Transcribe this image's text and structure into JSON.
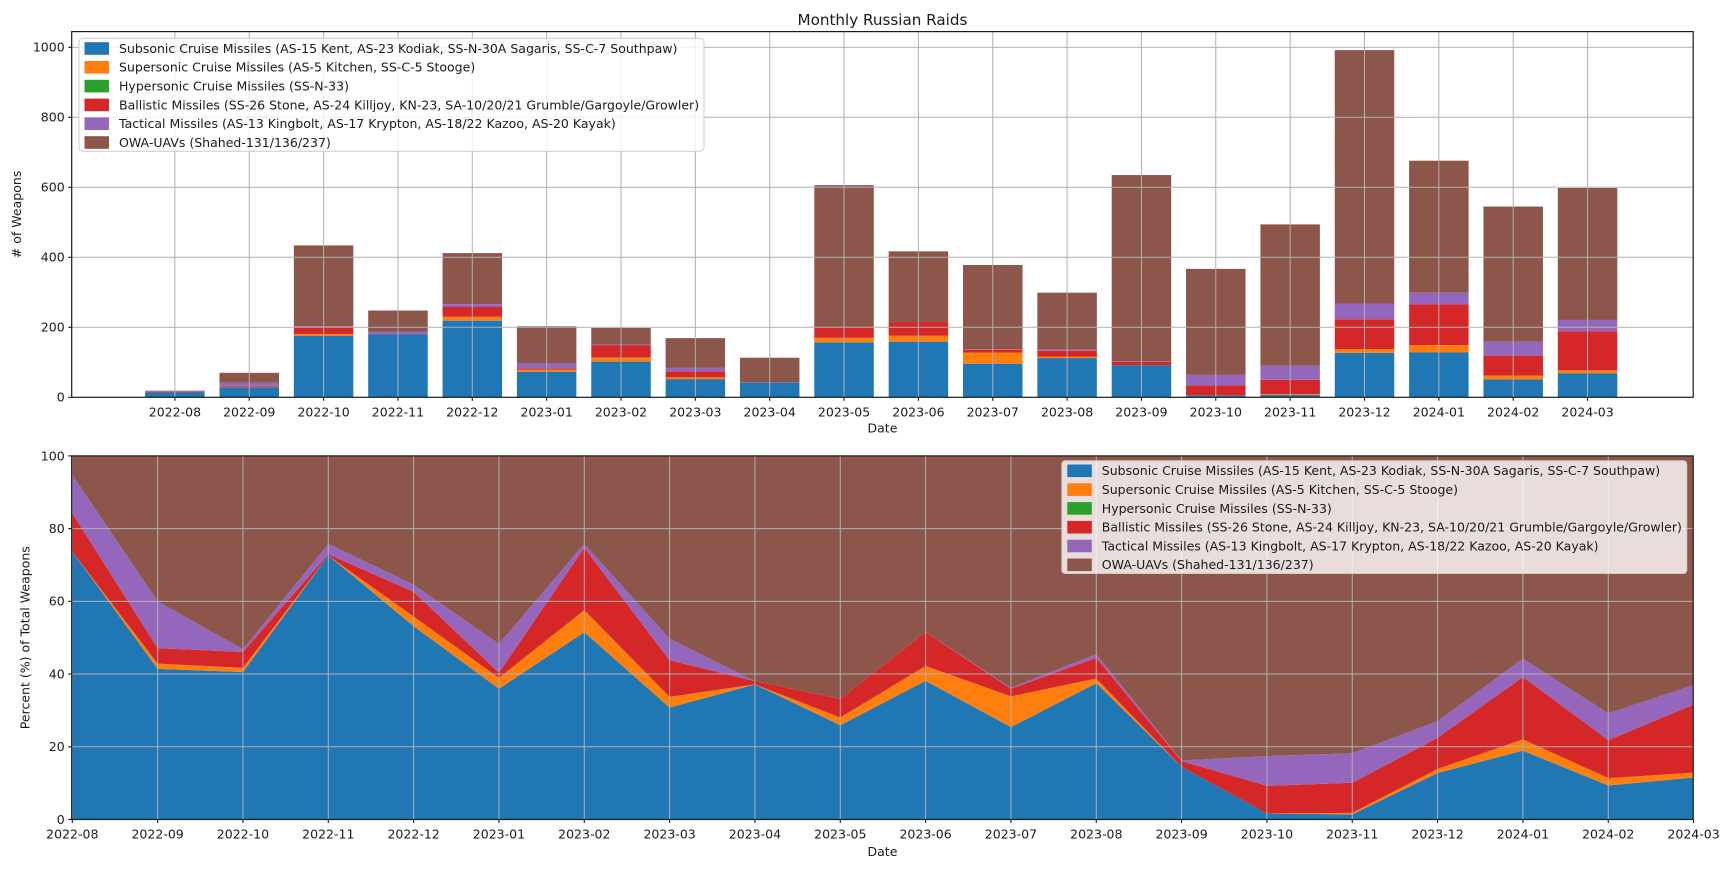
{
  "figure_title": "Monthly Russian Raids",
  "chart_data": {
    "categories": [
      "2022-08",
      "2022-09",
      "2022-10",
      "2022-11",
      "2022-12",
      "2023-01",
      "2023-02",
      "2023-03",
      "2023-04",
      "2023-05",
      "2023-06",
      "2023-07",
      "2023-08",
      "2023-09",
      "2023-10",
      "2023-11",
      "2023-12",
      "2024-01",
      "2024-02",
      "2024-03"
    ],
    "series": [
      {
        "name": "Subsonic Cruise Missiles (AS-15 Kent, AS-23 Kodiak, SS-N-30A Sagaris, SS-C-7 Southpaw)",
        "color": "#1f77b4",
        "values": [
          14,
          29,
          176,
          180,
          219,
          73,
          102,
          52,
          42,
          157,
          159,
          96,
          112,
          92,
          6,
          7,
          127,
          128,
          51,
          69
        ]
      },
      {
        "name": "Supersonic Cruise Missiles (AS-5 Kitchen, SS-C-5 Stooge)",
        "color": "#ff7f0e",
        "values": [
          0,
          1,
          5,
          0,
          11,
          6,
          12,
          5,
          0,
          13,
          17,
          32,
          4,
          0,
          0,
          2,
          11,
          21,
          11,
          8
        ]
      },
      {
        "name": "Hypersonic Cruise Missiles (SS-N-33)",
        "color": "#2ca02c",
        "values": [
          0,
          0,
          0,
          0,
          0,
          0,
          0,
          0,
          0,
          0,
          0,
          0,
          0,
          0,
          0,
          0,
          0,
          0,
          0,
          0
        ]
      },
      {
        "name": "Ballistic Missiles (SS-26 Stone, AS-24 Killjoy, KN-23, SA-10/20/21 Grumble/Gargoyle/Growler)",
        "color": "#d62728",
        "values": [
          2,
          3,
          19,
          1,
          28,
          3,
          34,
          17,
          1,
          31,
          39,
          8,
          17,
          10,
          28,
          41,
          85,
          116,
          57,
          112
        ]
      },
      {
        "name": "Tactical Missiles (AS-13 Kingbolt, AS-17 Krypton, AS-18/22 Kazoo, AS-20 Kayak)",
        "color": "#9467bd",
        "values": [
          2,
          9,
          3,
          7,
          8,
          16,
          2,
          10,
          0,
          0,
          0,
          1,
          3,
          1,
          30,
          40,
          45,
          34,
          40,
          32
        ]
      },
      {
        "name": "OWA-UAVs (Shahed-131/136/237)",
        "color": "#8c564b",
        "values": [
          1,
          28,
          231,
          60,
          146,
          105,
          48,
          85,
          70,
          405,
          202,
          241,
          163,
          532,
          303,
          404,
          724,
          377,
          386,
          377
        ]
      }
    ],
    "charts": [
      {
        "type": "bar",
        "stacked": true,
        "title": "Monthly Russian Raids",
        "xlabel": "Date",
        "ylabel": "# of Weapons",
        "ylim": [
          0,
          1045
        ],
        "yticks": [
          "0",
          "200",
          "400",
          "600",
          "800",
          "1000"
        ],
        "grid": true,
        "legend_position": "upper left"
      },
      {
        "type": "area",
        "stacked": true,
        "normalized": true,
        "title": "",
        "xlabel": "Date",
        "ylabel": "Percent (%) of Total Weapons",
        "ylim": [
          0,
          100
        ],
        "yticks": [
          "0",
          "20",
          "40",
          "60",
          "80",
          "100"
        ],
        "grid": true,
        "legend_position": "upper right"
      }
    ]
  },
  "style": {
    "grid_color": "#b0b0b0",
    "spine_color": "#1a1a1a",
    "text_color": "#1a1a1a",
    "legend_border_color": "#cccccc",
    "legend_background": "rgba(255,255,255,0.8)",
    "background": "#ffffff"
  }
}
